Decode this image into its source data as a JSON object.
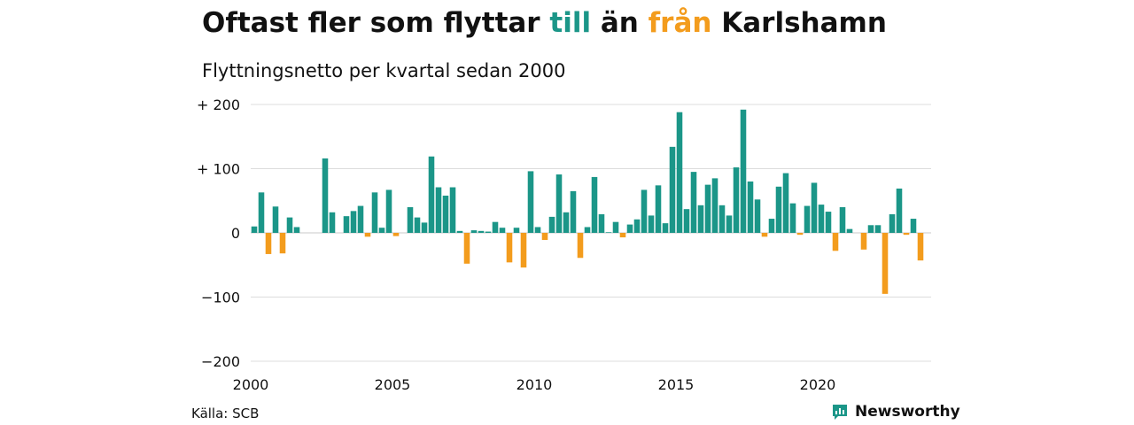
{
  "header": {
    "title_parts": [
      "Oftast fler som flyttar ",
      "till",
      " än ",
      "från",
      " Karlshamn"
    ],
    "subtitle": "Flyttningsnetto per kvartal sedan 2000"
  },
  "footer": {
    "source": "Källa: SCB",
    "brand": "Newsworthy"
  },
  "colors": {
    "positive": "#1b9688",
    "negative": "#f39c1d",
    "grid": "#dcdcdc",
    "brand": "#1b9688"
  },
  "icons": {
    "brand_logo": "chart-bubble-icon"
  },
  "chart_data": {
    "type": "bar",
    "title": "Oftast fler som flyttar till än från Karlshamn",
    "subtitle": "Flyttningsnetto per kvartal sedan 2000",
    "xlabel": "",
    "ylabel": "",
    "ylim": [
      -200,
      200
    ],
    "yticks": [
      {
        "value": 200,
        "label": "+ 200"
      },
      {
        "value": 100,
        "label": "+ 100"
      },
      {
        "value": 0,
        "label": "0"
      },
      {
        "value": -100,
        "label": "−100"
      },
      {
        "value": -200,
        "label": "−200"
      }
    ],
    "xticks": [
      {
        "value": 2000,
        "label": "2000"
      },
      {
        "value": 2005,
        "label": "2005"
      },
      {
        "value": 2010,
        "label": "2010"
      },
      {
        "value": 2015,
        "label": "2015"
      },
      {
        "value": 2020,
        "label": "2020"
      }
    ],
    "grid": true,
    "legend": "none",
    "series": [
      {
        "start_year": 2000,
        "periods_per_year": 4,
        "values": [
          10,
          63,
          -33,
          41,
          -32,
          24,
          9,
          0,
          0,
          0,
          116,
          32,
          0,
          26,
          34,
          42,
          -6,
          63,
          8,
          67,
          -5,
          0,
          40,
          24,
          16,
          119,
          71,
          58,
          71,
          3,
          -48,
          4,
          3,
          2,
          17,
          8,
          -46,
          8,
          -54,
          96,
          9,
          -11,
          25,
          91,
          32,
          65,
          -39,
          9,
          87,
          29,
          1,
          17,
          -7,
          13,
          21,
          67,
          27,
          74,
          15,
          134,
          188,
          37,
          95,
          43,
          75,
          85,
          43,
          27,
          102,
          192,
          80,
          52,
          -6,
          22,
          72,
          93,
          46,
          -3,
          42,
          78,
          44,
          33,
          -28,
          40,
          6,
          0,
          -26,
          12,
          12,
          -95,
          29,
          69,
          -3,
          22,
          -43
        ]
      }
    ]
  }
}
